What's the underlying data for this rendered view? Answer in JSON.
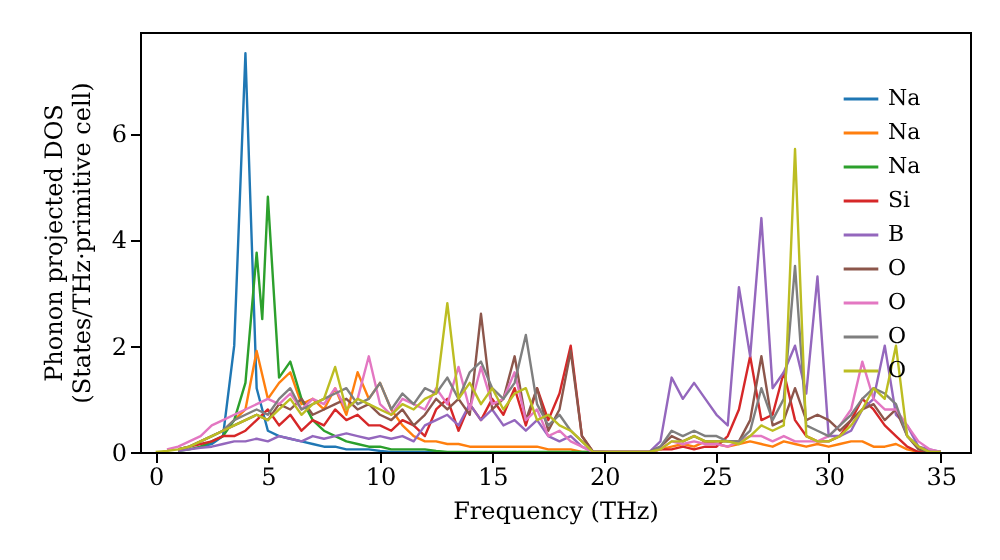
{
  "chart_data": {
    "type": "line",
    "xlabel": "Frequency (THz)",
    "ylabel": "Phonon projected DOS\n(States/THz·primitive cell)",
    "x": [
      0,
      0.5,
      1,
      1.5,
      2,
      2.5,
      3,
      3.5,
      4,
      4.5,
      5,
      5.5,
      6,
      6.5,
      7,
      7.5,
      8,
      8.5,
      9,
      9.5,
      10,
      10.5,
      11,
      11.5,
      12,
      12.5,
      13,
      13.5,
      14,
      14.5,
      15,
      15.5,
      16,
      16.5,
      17,
      17.5,
      18,
      18.5,
      19,
      19.5,
      20,
      20.5,
      21,
      21.5,
      22,
      22.5,
      23,
      23.5,
      24,
      24.5,
      25,
      25.5,
      26,
      26.5,
      27,
      27.5,
      28,
      28.5,
      29,
      29.5,
      30,
      30.5,
      31,
      31.5,
      32,
      32.5,
      33,
      33.5,
      34,
      34.5,
      35
    ],
    "xlim": [
      -0.7,
      36.3
    ],
    "xticks": [
      0,
      5,
      10,
      15,
      20,
      25,
      30,
      35
    ],
    "ylim": [
      0,
      7.9
    ],
    "yticks": [
      0,
      2,
      4,
      6
    ],
    "legend": "top right",
    "line_style": "solid",
    "series": [
      {
        "name": "Na",
        "color": "#1f77b4",
        "values": [
          null,
          null,
          null,
          null,
          0.1,
          0.15,
          0.3,
          2.0,
          7.5,
          1.2,
          0.4,
          0.3,
          0.25,
          0.2,
          0.15,
          0.1,
          0.1,
          0.05,
          0.05,
          0.05,
          0.02,
          0,
          0,
          0,
          0,
          0,
          null,
          null,
          null,
          null,
          null,
          null,
          null,
          null,
          null,
          null,
          null,
          null,
          null,
          null,
          null,
          null,
          null,
          null,
          null,
          null,
          null,
          null,
          null,
          null,
          null,
          null,
          null,
          null,
          null,
          null,
          null,
          null,
          null,
          null,
          null,
          null,
          null,
          null,
          null,
          null,
          null,
          null,
          null,
          null,
          null
        ]
      },
      {
        "name": "Na",
        "color": "#ff7f0e",
        "values": [
          null,
          null,
          null,
          null,
          null,
          null,
          0.4,
          0.6,
          0.8,
          1.9,
          1.0,
          1.3,
          1.5,
          0.9,
          1.0,
          0.8,
          1.2,
          0.7,
          1.5,
          1.0,
          1.3,
          0.8,
          0.5,
          0.3,
          0.2,
          0.2,
          0.15,
          0.15,
          0.1,
          0.1,
          0.1,
          0.1,
          0.1,
          0.1,
          0.1,
          0.05,
          0.05,
          0.05,
          0,
          0,
          0,
          0,
          0,
          0,
          0,
          0.05,
          0.1,
          0.15,
          0.1,
          0.2,
          0.15,
          0.1,
          0.15,
          0.2,
          0.15,
          0.1,
          0.2,
          0.15,
          0.1,
          0.15,
          0.1,
          0.15,
          0.2,
          0.2,
          0.1,
          0.1,
          0.15,
          0.05,
          0,
          0,
          0
        ]
      },
      {
        "name": "Na",
        "color": "#2ca02c",
        "x": [
          1,
          1.5,
          2,
          2.5,
          3,
          3.5,
          4,
          4.5,
          4.75,
          5,
          5.5,
          6,
          6.5,
          7,
          7.5,
          8,
          8.5,
          9,
          9.5,
          10,
          10.5,
          11,
          11.5,
          12,
          12.5,
          13,
          15,
          20
        ],
        "values": [
          0.02,
          0.05,
          0.1,
          0.2,
          0.3,
          0.6,
          1.3,
          3.75,
          2.5,
          4.8,
          1.4,
          1.7,
          1.0,
          0.6,
          0.4,
          0.3,
          0.2,
          0.15,
          0.1,
          0.1,
          0.05,
          0.05,
          0.05,
          0.05,
          0.02,
          0,
          0,
          0
        ]
      },
      {
        "name": "Si",
        "color": "#d62728",
        "values": [
          null,
          null,
          0.05,
          0.1,
          0.15,
          0.2,
          0.3,
          0.3,
          0.4,
          0.6,
          0.8,
          0.5,
          0.7,
          0.4,
          0.6,
          0.5,
          0.8,
          0.6,
          0.7,
          0.5,
          0.5,
          0.4,
          0.6,
          0.5,
          0.3,
          0.8,
          1.0,
          0.4,
          0.9,
          0.6,
          1.0,
          0.7,
          1.2,
          0.5,
          1.2,
          0.6,
          1.1,
          2.0,
          0.3,
          0,
          0,
          0,
          0,
          0,
          0,
          0.05,
          0.05,
          0.1,
          0.05,
          0.1,
          0.1,
          0.3,
          0.8,
          1.8,
          0.6,
          0.7,
          1.5,
          0.6,
          0.3,
          0.2,
          0.2,
          0.3,
          0.6,
          1.0,
          0.8,
          0.5,
          0.3,
          0.1,
          0,
          0,
          0
        ]
      },
      {
        "name": "B",
        "color": "#9467bd",
        "values": [
          null,
          null,
          0.02,
          0.05,
          0.08,
          0.1,
          0.15,
          0.2,
          0.2,
          0.25,
          0.2,
          0.3,
          0.25,
          0.2,
          0.3,
          0.25,
          0.3,
          0.35,
          0.3,
          0.25,
          0.3,
          0.25,
          0.3,
          0.2,
          0.5,
          0.6,
          0.7,
          0.5,
          0.9,
          0.6,
          0.8,
          0.5,
          0.6,
          0.4,
          0.6,
          0.3,
          0.2,
          0.3,
          0.1,
          0,
          0,
          0,
          0,
          0,
          0,
          0.2,
          1.4,
          1.0,
          1.3,
          1.0,
          0.7,
          0.5,
          3.1,
          1.8,
          4.4,
          1.2,
          1.5,
          2.0,
          1.1,
          3.3,
          0.3,
          0.3,
          0.4,
          0.8,
          1.0,
          2.0,
          0.7,
          0.5,
          0.1,
          0.05,
          0
        ]
      },
      {
        "name": "O",
        "color": "#8c564b",
        "values": [
          null,
          null,
          0.05,
          0.1,
          0.2,
          0.3,
          0.4,
          0.5,
          0.6,
          0.7,
          0.6,
          0.9,
          0.8,
          1.0,
          0.7,
          0.8,
          0.9,
          1.0,
          0.8,
          0.9,
          0.7,
          0.6,
          0.8,
          0.5,
          0.7,
          1.0,
          0.8,
          1.0,
          0.7,
          2.6,
          0.8,
          1.0,
          1.8,
          0.6,
          1.2,
          0.4,
          0.8,
          1.9,
          0.3,
          0,
          0,
          0,
          0,
          0,
          0,
          0.1,
          0.3,
          0.2,
          0.3,
          0.2,
          0.2,
          0.2,
          0.2,
          0.6,
          1.8,
          0.5,
          0.6,
          1.2,
          0.6,
          0.7,
          0.6,
          0.4,
          0.6,
          0.8,
          0.9,
          0.6,
          0.8,
          0.3,
          0.05,
          0,
          0
        ]
      },
      {
        "name": "O",
        "color": "#e377c2",
        "values": [
          null,
          0.05,
          0.1,
          0.2,
          0.3,
          0.5,
          0.6,
          0.7,
          0.8,
          0.9,
          1.0,
          0.9,
          1.1,
          0.8,
          1.0,
          0.9,
          1.2,
          0.8,
          1.0,
          1.8,
          0.9,
          0.7,
          1.0,
          0.9,
          0.8,
          1.2,
          0.9,
          1.6,
          0.8,
          1.6,
          0.9,
          1.0,
          1.5,
          0.6,
          0.8,
          0.3,
          0.4,
          0.2,
          0.1,
          0,
          0,
          0,
          0,
          0,
          0,
          0.05,
          0.2,
          0.15,
          0.2,
          0.15,
          0.15,
          0.1,
          0.2,
          0.3,
          0.3,
          0.2,
          0.3,
          0.2,
          0.2,
          0.2,
          0.3,
          0.5,
          0.8,
          1.7,
          1.0,
          0.8,
          0.8,
          0.5,
          0.2,
          0.05,
          0
        ]
      },
      {
        "name": "O",
        "color": "#7f7f7f",
        "values": [
          null,
          null,
          0.05,
          0.1,
          0.2,
          0.3,
          0.4,
          0.6,
          0.7,
          0.8,
          0.7,
          1.0,
          1.2,
          0.8,
          0.9,
          1.0,
          1.1,
          1.2,
          0.9,
          1.0,
          1.3,
          0.8,
          1.1,
          0.9,
          1.2,
          1.1,
          1.4,
          1.0,
          1.5,
          1.7,
          1.2,
          1.0,
          1.3,
          2.2,
          0.9,
          0.5,
          0.7,
          0.4,
          0.2,
          0,
          0,
          0,
          0,
          0,
          0,
          0.1,
          0.4,
          0.3,
          0.4,
          0.3,
          0.3,
          0.2,
          0.2,
          0.4,
          1.2,
          0.6,
          1.0,
          3.5,
          0.5,
          0.4,
          0.3,
          0.5,
          0.7,
          1.0,
          1.2,
          1.1,
          0.9,
          0.3,
          0.1,
          0,
          0
        ]
      },
      {
        "name": "O",
        "color": "#bcbd22",
        "values": [
          0,
          0.02,
          0.05,
          0.1,
          0.2,
          0.3,
          0.4,
          0.5,
          0.6,
          0.7,
          0.6,
          0.8,
          1.0,
          0.7,
          0.9,
          1.0,
          1.6,
          0.8,
          1.0,
          0.9,
          0.8,
          0.7,
          0.9,
          0.8,
          1.0,
          1.1,
          2.8,
          1.0,
          1.3,
          0.9,
          1.2,
          0.8,
          1.1,
          1.2,
          0.6,
          0.7,
          0.5,
          0.4,
          0.2,
          0,
          0,
          0,
          0,
          0,
          0,
          0.05,
          0.2,
          0.2,
          0.3,
          0.2,
          0.2,
          0.2,
          0.15,
          0.3,
          0.5,
          0.4,
          0.5,
          5.7,
          0.3,
          0.2,
          0.2,
          0.3,
          0.5,
          0.8,
          1.2,
          1.0,
          2.0,
          0.3,
          0.1,
          0,
          0
        ]
      }
    ]
  }
}
